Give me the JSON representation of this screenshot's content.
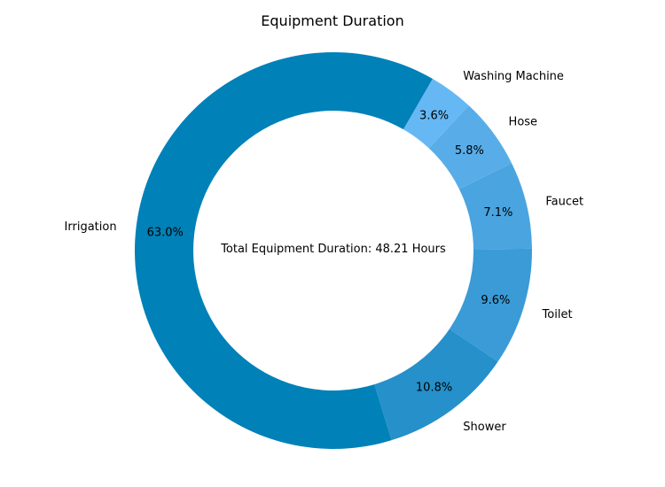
{
  "chart_data": {
    "type": "pie",
    "variant": "donut",
    "title": "Equipment Duration",
    "center_text": "Total Equipment Duration: 48.21 Hours",
    "categories": [
      "Irrigation",
      "Shower",
      "Toilet",
      "Faucet",
      "Hose",
      "Washing Machine"
    ],
    "values": [
      63.0,
      10.8,
      9.6,
      7.1,
      5.8,
      3.6
    ],
    "value_labels": [
      "63.0%",
      "10.8%",
      "9.6%",
      "7.1%",
      "5.8%",
      "3.6%"
    ],
    "colors": [
      "#0081b8",
      "#2590ca",
      "#3a9bd6",
      "#4aa4df",
      "#58ade9",
      "#66b8f4"
    ],
    "start_angle_deg": 60,
    "direction": "counterclockwise",
    "legend": "none"
  }
}
